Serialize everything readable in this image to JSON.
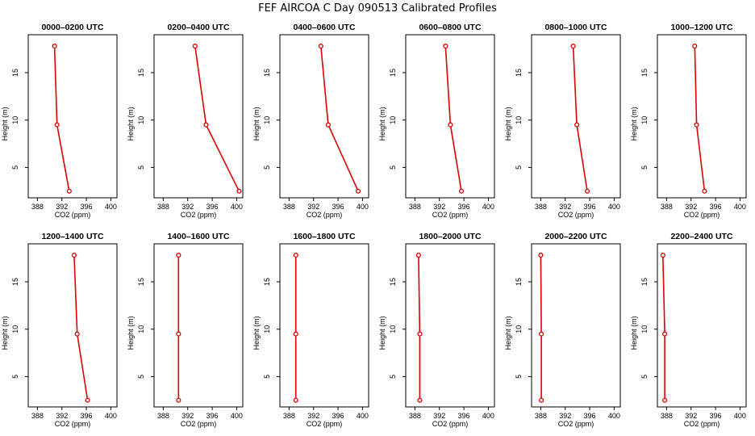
{
  "title": "FEF AIRCOA C  Day 090513  Calibrated Profiles",
  "chart_data": {
    "type": "line",
    "xlabel": "CO2 (ppm)",
    "ylabel": "Height (m)",
    "xlim": [
      386.5,
      401
    ],
    "ylim": [
      1.8,
      19.0
    ],
    "xticks": [
      388,
      392,
      396,
      400
    ],
    "yticks": [
      5,
      10,
      15
    ],
    "heights": [
      17.8,
      9.5,
      2.5
    ],
    "panels": [
      {
        "title": "0000–0200 UTC",
        "values": [
          390.8,
          391.2,
          393.2
        ]
      },
      {
        "title": "0200–0400 UTC",
        "values": [
          393.2,
          395.0,
          400.4
        ]
      },
      {
        "title": "0400–0600 UTC",
        "values": [
          393.2,
          394.4,
          399.3
        ]
      },
      {
        "title": "0600–0800 UTC",
        "values": [
          393.0,
          393.8,
          395.6
        ]
      },
      {
        "title": "0800–1000 UTC",
        "values": [
          393.3,
          393.9,
          395.6
        ]
      },
      {
        "title": "1000–1200 UTC",
        "values": [
          392.6,
          392.9,
          394.2
        ]
      },
      {
        "title": "1200–1400 UTC",
        "values": [
          394.0,
          394.5,
          396.2
        ]
      },
      {
        "title": "1400–1600 UTC",
        "values": [
          390.5,
          390.5,
          390.5
        ]
      },
      {
        "title": "1600–1800 UTC",
        "values": [
          389.1,
          389.1,
          389.1
        ]
      },
      {
        "title": "1800–2000 UTC",
        "values": [
          388.6,
          388.8,
          388.8
        ]
      },
      {
        "title": "2000–2200 UTC",
        "values": [
          388.0,
          388.1,
          388.1
        ]
      },
      {
        "title": "2200–2400 UTC",
        "values": [
          387.4,
          387.7,
          387.7
        ]
      }
    ]
  }
}
